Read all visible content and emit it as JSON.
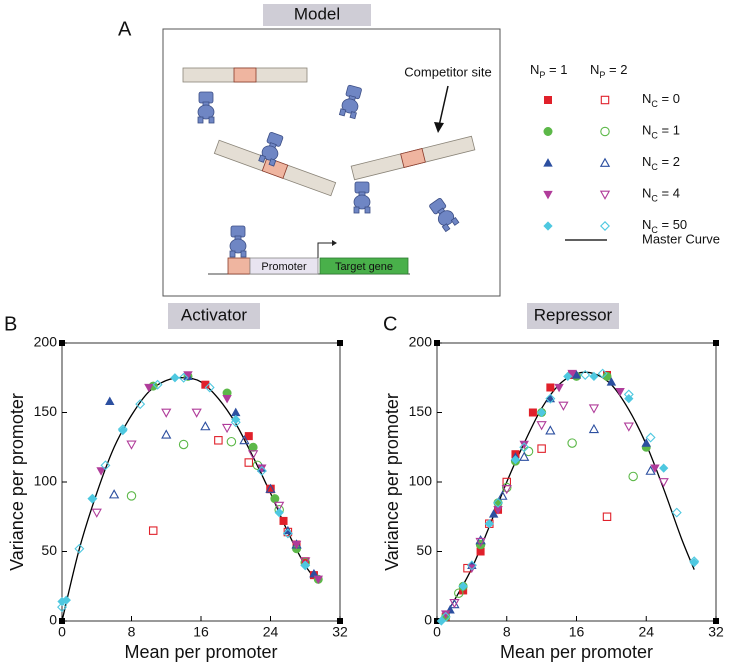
{
  "panel_labels": [
    "A",
    "B",
    "C"
  ],
  "model": {
    "title": "Model",
    "competitor_label": "Competitor site",
    "promoter": "Promoter",
    "target_gene": "Target gene"
  },
  "legend": {
    "headers": [
      [
        "N",
        "P",
        " = 1"
      ],
      [
        "N",
        "P",
        " = 2"
      ]
    ],
    "master_curve": "Master Curve"
  },
  "chart_data": [
    {
      "type": "scatter",
      "title": "Activator",
      "xlabel": "Mean per promoter",
      "ylabel": "Variance per promoter",
      "xlim": [
        0,
        32
      ],
      "ylim": [
        0,
        200
      ],
      "xticks": [
        0,
        8,
        16,
        24,
        32
      ],
      "yticks": [
        0,
        50,
        100,
        150,
        200
      ],
      "curve": {
        "color": "#000000",
        "x": [
          0,
          2,
          4,
          6,
          8,
          10,
          12,
          14,
          16,
          18,
          20,
          22,
          24,
          26,
          28,
          29.5
        ],
        "values": [
          0,
          52,
          92,
          125,
          148,
          165,
          173,
          175,
          172,
          160,
          142,
          118,
          92,
          64,
          40,
          28
        ]
      },
      "series": [
        {
          "name": [
            "N",
            "C",
            " = 0"
          ],
          "color": "#e0202a",
          "marker": "square",
          "np1": {
            "x": [
              16.5,
              21.5,
              24,
              25.5,
              27,
              28,
              29
            ],
            "values": [
              170,
              133,
              95,
              72,
              55,
              43,
              33
            ]
          },
          "np2": {
            "x": [
              10.5,
              18,
              21.5,
              24,
              26
            ],
            "values": [
              65,
              130,
              114,
              95,
              64
            ]
          }
        },
        {
          "name": [
            "N",
            "C",
            " = 1"
          ],
          "color": "#5cb848",
          "marker": "circle",
          "np1": {
            "x": [
              10.5,
              14.5,
              19,
              22,
              24.5,
              27,
              29.5
            ],
            "values": [
              169,
              176,
              164,
              125,
              88,
              52,
              30
            ]
          },
          "np2": {
            "x": [
              8,
              14,
              19.5,
              22.5,
              25,
              28
            ],
            "values": [
              90,
              127,
              129,
              112,
              80,
              42
            ]
          }
        },
        {
          "name": [
            "N",
            "C",
            " = 2"
          ],
          "color": "#2c4fa0",
          "marker": "up",
          "np1": {
            "x": [
              5.5,
              14.5,
              20,
              23,
              26,
              29
            ],
            "values": [
              158,
              176,
              150,
              110,
              65,
              34
            ]
          },
          "np2": {
            "x": [
              6,
              12,
              16.5,
              21,
              24,
              27
            ],
            "values": [
              91,
              134,
              140,
              130,
              95,
              55
            ]
          }
        },
        {
          "name": [
            "N",
            "C",
            " = 4"
          ],
          "color": "#b03c9a",
          "marker": "down",
          "np1": {
            "x": [
              4.5,
              10,
              14.5,
              19,
              23,
              27,
              29.5
            ],
            "values": [
              108,
              168,
              177,
              160,
              110,
              55,
              30
            ]
          },
          "np2": {
            "x": [
              4,
              8,
              12,
              15.5,
              19,
              22,
              25,
              28
            ],
            "values": [
              78,
              127,
              150,
              150,
              139,
              120,
              83,
              43
            ]
          }
        },
        {
          "name": [
            "N",
            "C",
            " = 50"
          ],
          "color": "#4ec8e0",
          "marker": "diamond",
          "np1": {
            "x": [
              0,
              0.5,
              3.5,
              7,
              13,
              20,
              25,
              28
            ],
            "values": [
              14,
              15,
              88,
              137,
              175,
              145,
              78,
              40
            ]
          },
          "np2": {
            "x": [
              0,
              2,
              3.5,
              5,
              7,
              9,
              11,
              14,
              17,
              20,
              23,
              26,
              28
            ],
            "values": [
              10,
              52,
              88,
              112,
              138,
              156,
              170,
              175,
              168,
              143,
              108,
              63,
              40
            ]
          }
        }
      ]
    },
    {
      "type": "scatter",
      "title": "Repressor",
      "xlabel": "Mean  per promoter",
      "ylabel": "Variance per promoter",
      "xlim": [
        0,
        32
      ],
      "ylim": [
        0,
        200
      ],
      "xticks": [
        0,
        8,
        16,
        24,
        32
      ],
      "yticks": [
        0,
        50,
        100,
        150,
        200
      ],
      "curve": {
        "color": "#000000",
        "x": [
          0.5,
          2,
          4,
          6,
          8,
          10,
          12,
          14,
          16,
          18,
          20,
          22,
          24,
          26,
          28,
          29.5
        ],
        "values": [
          0,
          15,
          38,
          68,
          100,
          128,
          153,
          170,
          178,
          178,
          170,
          152,
          127,
          95,
          60,
          37
        ]
      },
      "series": [
        {
          "name": [
            "N",
            "C",
            " = 0"
          ],
          "color": "#e0202a",
          "marker": "square",
          "np1": {
            "x": [
              1,
              3,
              5,
              7,
              9,
              11,
              13,
              15.5,
              19.5
            ],
            "values": [
              3,
              22,
              50,
              80,
              120,
              150,
              168,
              177,
              177
            ]
          },
          "np2": {
            "x": [
              3.5,
              6,
              8,
              12,
              19.5
            ],
            "values": [
              38,
              70,
              100,
              124,
              75
            ]
          }
        },
        {
          "name": [
            "N",
            "C",
            " = 1"
          ],
          "color": "#5cb848",
          "marker": "circle",
          "np1": {
            "x": [
              1,
              3,
              5,
              7,
              9,
              12,
              16,
              19.5,
              24
            ],
            "values": [
              3,
              25,
              55,
              85,
              115,
              150,
              176,
              176,
              125
            ]
          },
          "np2": {
            "x": [
              2.5,
              5,
              8,
              10.5,
              15.5,
              22.5
            ],
            "values": [
              20,
              55,
              96,
              122,
              128,
              104
            ]
          }
        },
        {
          "name": [
            "N",
            "C",
            " = 2"
          ],
          "color": "#2c4fa0",
          "marker": "up",
          "np1": {
            "x": [
              1.5,
              4,
              6.5,
              9,
              13,
              16,
              20,
              24
            ],
            "values": [
              8,
              40,
              77,
              118,
              160,
              177,
              172,
              128
            ]
          },
          "np2": {
            "x": [
              2,
              5,
              7.5,
              10,
              13,
              18,
              24.5
            ],
            "values": [
              12,
              58,
              90,
              118,
              137,
              138,
              108
            ]
          }
        },
        {
          "name": [
            "N",
            "C",
            " = 4"
          ],
          "color": "#b03c9a",
          "marker": "down",
          "np1": {
            "x": [
              1,
              4,
              7,
              10,
              14,
              15.5,
              21,
              25
            ],
            "values": [
              5,
              38,
              80,
              127,
              168,
              178,
              165,
              110
            ]
          },
          "np2": {
            "x": [
              2,
              5,
              8,
              12,
              14.5,
              18,
              22,
              26
            ],
            "values": [
              13,
              57,
              95,
              141,
              155,
              153,
              140,
              100
            ]
          }
        },
        {
          "name": [
            "N",
            "C",
            " = 50"
          ],
          "color": "#4ec8e0",
          "marker": "diamond",
          "np1": {
            "x": [
              0.5,
              3,
              6,
              9,
              12,
              15,
              18,
              22,
              26,
              29.5
            ],
            "values": [
              0,
              25,
              70,
              116,
              150,
              176,
              176,
              160,
              110,
              42
            ]
          },
          "np2": {
            "x": [
              1,
              4,
              7,
              10,
              13,
              17,
              19,
              22,
              24.5,
              27.5,
              29.5
            ],
            "values": [
              3,
              40,
              85,
              125,
              160,
              177,
              178,
              163,
              132,
              78,
              43
            ]
          }
        }
      ]
    }
  ]
}
